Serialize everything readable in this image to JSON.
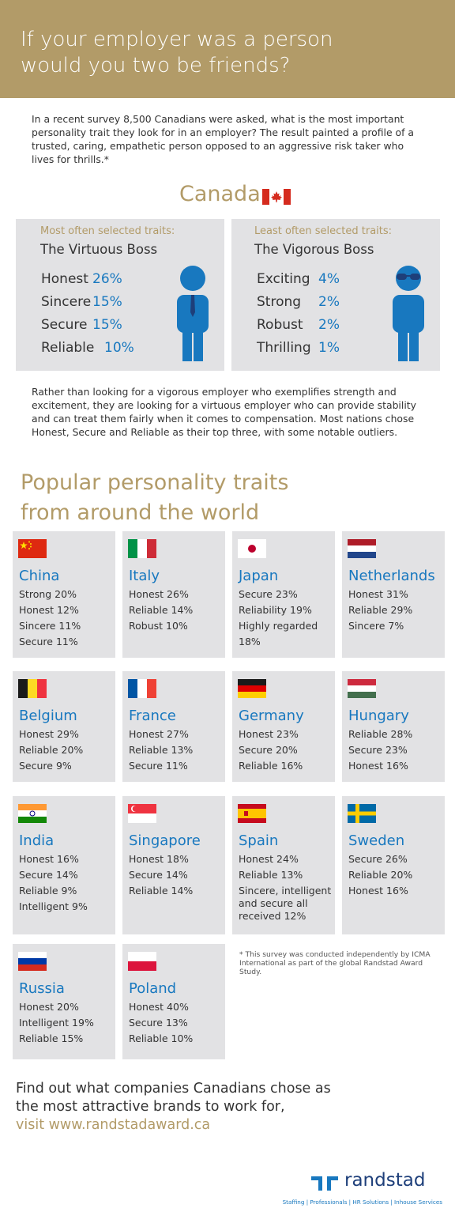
{
  "header": {
    "title_line1": "If your employer was a person",
    "title_line2": "would you two be friends?"
  },
  "intro": "In a recent survey 8,500 Canadians were asked, what is the most important personality trait they look for in an employer? The result painted a profile of a trusted, caring, empathetic person opposed to an aggressive risk taker who lives for thrills.*",
  "canada": {
    "label": "Canada",
    "virtuous": {
      "subtitle": "Most often selected traits:",
      "title": "The Virtuous Boss",
      "traits": [
        {
          "name": "Honest",
          "pct": "26%"
        },
        {
          "name": "Sincere",
          "pct": "15%"
        },
        {
          "name": "Secure",
          "pct": "15%"
        },
        {
          "name": "Reliable",
          "pct": "10%"
        }
      ]
    },
    "vigorous": {
      "subtitle": "Least often selected traits:",
      "title": "The Vigorous Boss",
      "traits": [
        {
          "name": "Exciting",
          "pct": "4%"
        },
        {
          "name": "Strong",
          "pct": "2%"
        },
        {
          "name": "Robust",
          "pct": "2%"
        },
        {
          "name": "Thrilling",
          "pct": "1%"
        }
      ]
    }
  },
  "paragraph2": "Rather than looking for a vigorous employer who exemplifies strength and excitement, they are looking for a virtuous employer who can provide stability and can treat them fairly when it comes to compensation. Most nations chose Honest, Secure and Reliable as their top three, with some notable outliers.",
  "popular": {
    "line1": "Popular personality traits",
    "line2": "from around the world"
  },
  "countries": [
    {
      "name": "China",
      "lines": [
        "Strong 20%",
        "Honest 12%",
        "Sincere 11%",
        "Secure 11%"
      ]
    },
    {
      "name": "Italy",
      "lines": [
        "Honest 26%",
        "Reliable 14%",
        "Robust 10%"
      ]
    },
    {
      "name": "Japan",
      "lines": [
        "Secure 23%",
        "Reliability 19%",
        "Highly regarded 18%"
      ]
    },
    {
      "name": "Netherlands",
      "lines": [
        "Honest 31%",
        "Reliable 29%",
        "Sincere 7%"
      ]
    },
    {
      "name": "Belgium",
      "lines": [
        "Honest 29%",
        "Reliable 20%",
        "Secure 9%"
      ]
    },
    {
      "name": "France",
      "lines": [
        "Honest 27%",
        "Reliable 13%",
        "Secure 11%"
      ]
    },
    {
      "name": "Germany",
      "lines": [
        "Honest 23%",
        "Secure 20%",
        "Reliable 16%"
      ]
    },
    {
      "name": "Hungary",
      "lines": [
        "Reliable 28%",
        "Secure 23%",
        "Honest 16%"
      ]
    },
    {
      "name": "India",
      "lines": [
        "Honest 16%",
        "Secure 14%",
        "Reliable 9%",
        "Intelligent 9%"
      ]
    },
    {
      "name": "Singapore",
      "lines": [
        "Honest 18%",
        "Secure 14%",
        "Reliable 14%"
      ]
    },
    {
      "name": "Spain",
      "lines": [
        "Honest 24%",
        "Reliable 13%",
        "Sincere, intelligent and secure all received 12%"
      ]
    },
    {
      "name": "Sweden",
      "lines": [
        "Secure 26%",
        "Reliable 20%",
        "Honest 16%"
      ]
    },
    {
      "name": "Russia",
      "lines": [
        "Honest 20%",
        "Intelligent 19%",
        "Reliable 15%"
      ]
    },
    {
      "name": "Poland",
      "lines": [
        "Honest 40%",
        "Secure 13%",
        "Reliable 10%"
      ]
    }
  ],
  "footnote": "* This survey was conducted independently by ICMA International as part of the global Randstad Award Study.",
  "cta": {
    "line1": "Find out what companies Canadians chose as",
    "line2": "the most attractive brands to work for,",
    "link": "visit www.randstadaward.ca"
  },
  "logo": {
    "wordmark": "randstad",
    "tagline": "Staffing | Professionals | HR Solutions | Inhouse Services"
  },
  "colors": {
    "gold": "#b29b68",
    "blue": "#1878bf",
    "card_bg": "#e2e2e4",
    "navy": "#1e3f7a"
  }
}
